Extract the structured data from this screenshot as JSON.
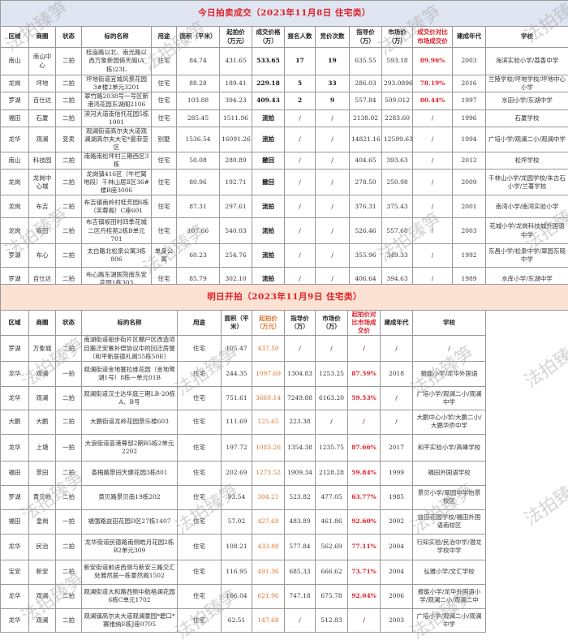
{
  "watermark": "法拍臻笋",
  "today": {
    "title": "今日拍卖成交（2023年11月8日  住宅类）",
    "headers": [
      "区域",
      "商圈",
      "状态",
      "标的名称",
      "用途",
      "面积（平米）",
      "起拍价（万元）",
      "成交价格（万）",
      "报名人数",
      "竞价次数",
      "指导价（万）",
      "市场价（万）",
      "成交价对比市场成交价",
      "建成年代",
      "学校"
    ],
    "rows": [
      [
        "南山",
        "南山中心",
        "二拍",
        "桂庙路以北、南光路以西万象新园倚天阁(A栋)23L",
        "住宅",
        "84.74",
        "431.65",
        "533.65",
        "17",
        "19",
        "635.55",
        "593.18",
        "89.96%",
        "2003",
        "海滨实验小学/荔香中学"
      ],
      [
        "龙岗",
        "坪地",
        "二拍",
        "坪地街道宜城风景花园3#楼2单元3201",
        "住宅",
        "88.28",
        "189.41",
        "229.18",
        "5",
        "33",
        "286.03",
        "293.0896",
        "78.19%",
        "2016",
        "兰陵学校/坪地学校/坪地中心小学"
      ],
      [
        "罗湖",
        "百仕达",
        "二拍",
        "翠竹路2038号一号区新港鸿花园东湖阁2106",
        "住宅",
        "103.88",
        "394.23",
        "409.43",
        "2",
        "9",
        "557.84",
        "509.012",
        "80.44%",
        "1997",
        "水田小学/东湖中学"
      ],
      [
        "福田",
        "石厦",
        "二拍",
        "滨河大道南信托花园5栋1001",
        "住宅",
        "285.45",
        "1511.96",
        "流拍",
        "/",
        "/",
        "2138.02",
        "2283.60",
        "/",
        "1996",
        "石厦学校"
      ],
      [
        "龙华",
        "观澜",
        "变卖",
        "观澜街道高尔夫大道观澜湖高尔夫大宅*曼菲亚区",
        "别墅",
        "1536.54",
        "16091.26",
        "流拍",
        "/",
        "/",
        "14821.16",
        "12599.63",
        "/",
        "1994",
        "广培小学/观澜二小/观澜中学"
      ],
      [
        "南山",
        "科技园",
        "二拍",
        "南路南松坪村三期西区3栋",
        "住宅",
        "50.08",
        "280.89",
        "撤回",
        "/",
        "/",
        "404.65",
        "393.63",
        "/",
        "2012",
        "松坪学校"
      ],
      [
        "龙岗",
        "龙岗中心城",
        "二拍",
        "龙岗镇416区（牛栏窝地段）千林山居Ⅱ区36#楼B座3006",
        "住宅",
        "80.96",
        "192.71",
        "撤回",
        "/",
        "/",
        "278.50",
        "250.98",
        "/",
        "2009",
        "千林山小学/龙园学校/朱古石小学/兰著学校"
      ],
      [
        "龙岗",
        "布吉",
        "二拍",
        "布吉镇南岭村桂芳园6栋（芙蓉阁）C座601",
        "住宅",
        "87.31",
        "297.61",
        "流拍",
        "/",
        "/",
        "376.31",
        "375.43",
        "/",
        "2001",
        "南湾小学/南湾实验小学"
      ],
      [
        "龙岗",
        "坂田",
        "二拍",
        "布吉镇坂田村四季花城二区丹桂苑2栋B单元701",
        "住宅",
        "107.66",
        "540.03",
        "流拍",
        "/",
        "/",
        "526.46",
        "557.68",
        "/",
        "2003",
        "花城小学/龙岗科技城外国语中学"
      ],
      [
        "罗湖",
        "布心",
        "二拍",
        "太白路北松泉公寓3栋806",
        "单身公寓",
        "60.23",
        "254.76",
        "流拍",
        "/",
        "/",
        "355.96",
        "349.33",
        "/",
        "1992",
        "东昌小学/松泉中学/翠园东晓中学"
      ],
      [
        "罗湖",
        "百仕达",
        "二拍",
        "布心路东湖医院南东安花园1栋303",
        "住宅",
        "85.79",
        "302.10",
        "流拍",
        "/",
        "/",
        "406.64",
        "394.63",
        "/",
        "1989",
        "水库小学/东湖中学"
      ]
    ]
  },
  "tomorrow": {
    "title": "明日开拍（2023年11月9日  住宅类）",
    "headers": [
      "区域",
      "商圈",
      "状态",
      "标的名称",
      "用途",
      "面积（平米）",
      "起拍价（万元）",
      "指导价（万）",
      "市场价（万）",
      "起拍价对比市场成交价",
      "建成年代",
      "学校"
    ],
    "rows": [
      [
        "罗湖",
        "万象城",
        "二拍",
        "南湖街道船步街片区棚户区改造项目搬迁安置补偿协议中的回迁房屋（和平新居德礼阁55栋50E）",
        "住宅",
        "105.47",
        "437.50",
        "/",
        "/",
        "/",
        "/",
        "/"
      ],
      [
        "龙华",
        "观澜",
        "一拍",
        "观澜街道金地塞拉维花园（金地鹭湖1号）8栋一单元01B",
        "住宅",
        "244.35",
        "1097.69",
        "1304.83",
        "1253.25",
        "87.59%",
        "2018",
        "振能小学/龙华外国语"
      ],
      [
        "龙华",
        "观澜",
        "二拍",
        "观澜街道汉士达华庭三期LB-20栋A、B号",
        "住宅",
        "751.61",
        "3669.14",
        "7249.88",
        "6163.20",
        "59.53%",
        "/",
        "广培小学/观澜二小/观澜中学"
      ],
      [
        "大鹏",
        "大鹏",
        "二拍",
        "大鹏街道龙岭花园景乐楼603",
        "住宅",
        "111.69",
        "125.65",
        "223.38",
        "/",
        "/",
        "/",
        "大鹏中心小学/大鹏二小/大鹏华侨中学"
      ],
      [
        "龙华",
        "上塘",
        "一拍",
        "大浪街道荟港尊邸2期B5栋2单元2202",
        "住宅",
        "197.72",
        "1083.26",
        "1354.38",
        "1235.75",
        "87.66%",
        "2017",
        "和平实验小学/高峰学校"
      ],
      [
        "福田",
        "景田",
        "二拍",
        "香梅路景田天健花园3栋801",
        "住宅",
        "202.69",
        "1273.52",
        "1909.34",
        "2128.28",
        "59.84%",
        "1999",
        "福田外国语学校"
      ],
      [
        "罗湖",
        "黄贝岭",
        "二拍",
        "黄贝路景贝南19栋202",
        "住宅",
        "93.54",
        "304.21",
        "523.82",
        "477.05",
        "63.77%",
        "1985",
        "景贝小学/翠园中学怡景校区"
      ],
      [
        "福田",
        "皇岗",
        "一拍",
        "福强路益田花园D区27栋1407",
        "住宅",
        "57.02",
        "427.68",
        "483.89",
        "461.86",
        "92.60%",
        "2002",
        "益田花园学校/福田外国语南校区"
      ],
      [
        "龙华",
        "民治",
        "二拍",
        "龙华街道民德路南侧皓月花园2栋B2单元309",
        "住宅",
        "108.21",
        "433.88",
        "577.84",
        "562.69",
        "77.11%",
        "2004",
        "行知实验/民治中学/潜龙学校中学"
      ],
      [
        "宝安",
        "新安",
        "二拍",
        "新安街道前进西侧与新安三路交汇处雅然居一栋豪然阁1502",
        "住宅",
        "116.95",
        "491.36",
        "685.33",
        "666.62",
        "73.71%",
        "2004",
        "弘雅小学/文汇学校"
      ],
      [
        "龙华",
        "观澜",
        "二拍",
        "观澜街道大和路西侧中航格澜花园6栋C单元1702",
        "住宅",
        "166.04",
        "621.96",
        "747.18",
        "675.78",
        "92.04%",
        "2006",
        "振能小学/龙华外国语小学/观澜二小/观澜二中"
      ],
      [
        "龙华",
        "观澜",
        "二拍",
        "观澜镇高尔夫大道观澜豪园*碧口*赛维纳E栋J座0705",
        "住宅",
        "62.51",
        "147.68",
        "/",
        "512.83",
        "/",
        "2003",
        "广培小学/观澜二小/观澜中学"
      ]
    ]
  },
  "colors": {
    "title_red": "#e0202a",
    "start_price_orange": "#d9752b",
    "today_title_bg": "#dfe5f1",
    "tomorrow_title_bg": "#fbe2d2"
  }
}
